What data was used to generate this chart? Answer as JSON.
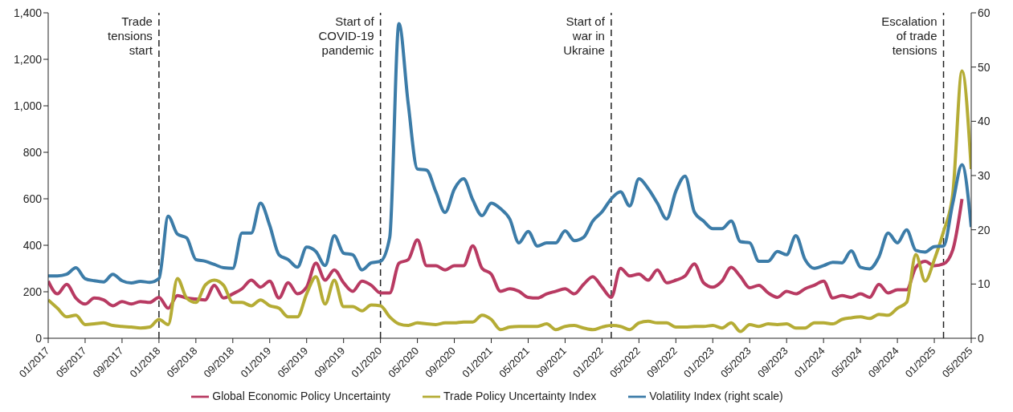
{
  "chart_data": {
    "type": "line",
    "x": [
      "2017-01",
      "2017-02",
      "2017-03",
      "2017-04",
      "2017-05",
      "2017-06",
      "2017-07",
      "2017-08",
      "2017-09",
      "2017-10",
      "2017-11",
      "2017-12",
      "2018-01",
      "2018-02",
      "2018-03",
      "2018-04",
      "2018-05",
      "2018-06",
      "2018-07",
      "2018-08",
      "2018-09",
      "2018-10",
      "2018-11",
      "2018-12",
      "2019-01",
      "2019-02",
      "2019-03",
      "2019-04",
      "2019-05",
      "2019-06",
      "2019-07",
      "2019-08",
      "2019-09",
      "2019-10",
      "2019-11",
      "2019-12",
      "2020-01",
      "2020-02",
      "2020-03",
      "2020-04",
      "2020-05",
      "2020-06",
      "2020-07",
      "2020-08",
      "2020-09",
      "2020-10",
      "2020-11",
      "2020-12",
      "2021-01",
      "2021-02",
      "2021-03",
      "2021-04",
      "2021-05",
      "2021-06",
      "2021-07",
      "2021-08",
      "2021-09",
      "2021-10",
      "2021-11",
      "2021-12",
      "2022-01",
      "2022-02",
      "2022-03",
      "2022-04",
      "2022-05",
      "2022-06",
      "2022-07",
      "2022-08",
      "2022-09",
      "2022-10",
      "2022-11",
      "2022-12",
      "2023-01",
      "2023-02",
      "2023-03",
      "2023-04",
      "2023-05",
      "2023-06",
      "2023-07",
      "2023-08",
      "2023-09",
      "2023-10",
      "2023-11",
      "2023-12",
      "2024-01",
      "2024-02",
      "2024-03",
      "2024-04",
      "2024-05",
      "2024-06",
      "2024-07",
      "2024-08",
      "2024-09",
      "2024-10",
      "2024-11",
      "2024-12",
      "2025-01",
      "2025-02",
      "2025-03",
      "2025-04",
      "2025-05"
    ],
    "series": [
      {
        "name": "Global Economic Policy Uncertainty",
        "color": "#b83a62",
        "values": [
          246,
          191,
          232,
          173,
          147,
          173,
          165,
          140,
          158,
          147,
          158,
          154,
          176,
          129,
          184,
          173,
          169,
          165,
          228,
          173,
          191,
          213,
          250,
          220,
          246,
          173,
          239,
          191,
          220,
          323,
          250,
          294,
          239,
          202,
          246,
          228,
          195,
          195,
          323,
          338,
          423,
          312,
          312,
          294,
          312,
          312,
          397,
          301,
          276,
          202,
          213,
          202,
          176,
          173,
          191,
          202,
          213,
          191,
          232,
          265,
          220,
          176,
          301,
          268,
          276,
          250,
          294,
          239,
          250,
          268,
          320,
          239,
          220,
          246,
          305,
          265,
          217,
          228,
          195,
          176,
          202,
          191,
          213,
          228,
          246,
          173,
          184,
          176,
          191,
          176,
          232,
          195,
          209,
          209,
          305,
          331,
          312,
          320,
          380,
          599,
          null
        ]
      },
      {
        "name": "Trade Policy Uncertainty Index",
        "color": "#b5ac35",
        "values": [
          165,
          129,
          92,
          99,
          59,
          62,
          66,
          55,
          51,
          48,
          44,
          48,
          81,
          59,
          257,
          173,
          154,
          228,
          250,
          228,
          154,
          154,
          140,
          165,
          140,
          129,
          92,
          92,
          191,
          265,
          147,
          250,
          136,
          136,
          118,
          143,
          140,
          92,
          62,
          55,
          66,
          62,
          59,
          66,
          66,
          70,
          70,
          99,
          81,
          37,
          48,
          51,
          51,
          51,
          62,
          37,
          51,
          55,
          44,
          37,
          48,
          55,
          51,
          37,
          66,
          73,
          66,
          66,
          48,
          48,
          51,
          51,
          55,
          44,
          66,
          29,
          59,
          51,
          62,
          59,
          62,
          44,
          44,
          66,
          66,
          62,
          81,
          88,
          92,
          85,
          103,
          99,
          129,
          154,
          360,
          246,
          338,
          459,
          620,
          1150,
          728
        ]
      },
      {
        "name": "Volatility Index (right scale)",
        "color": "#3c7ca8",
        "axis": "y2",
        "values": [
          11.5,
          11.5,
          11.8,
          13,
          11,
          10.6,
          10.4,
          11.8,
          10.6,
          10.2,
          10.5,
          10.3,
          11,
          22.5,
          19.2,
          18.5,
          14.5,
          14.2,
          13.6,
          13,
          12.9,
          19.4,
          19.4,
          24.9,
          20.8,
          15.4,
          14.5,
          13.1,
          16.8,
          16,
          13.4,
          18.9,
          15.7,
          15.4,
          12.6,
          13.9,
          14.2,
          18.6,
          58,
          43.3,
          31.2,
          31,
          27,
          23.2,
          27.5,
          29.4,
          25.5,
          22.6,
          24.9,
          23.9,
          22,
          17.6,
          19.7,
          17,
          17.6,
          17.6,
          19.8,
          18,
          18.6,
          21.6,
          23.3,
          25.7,
          27,
          24.4,
          29.4,
          27.6,
          24.9,
          22,
          27.1,
          29.9,
          23.3,
          21.6,
          20.2,
          20.2,
          21.6,
          17.8,
          17.6,
          14.2,
          14.2,
          16,
          15.4,
          18.9,
          14.5,
          12.9,
          13.4,
          14,
          13.9,
          16.1,
          13.1,
          12.8,
          15,
          19.4,
          17.6,
          20,
          16.2,
          15.9,
          16.9,
          17,
          24.9,
          32,
          20.5
        ]
      }
    ],
    "xlim": [
      "2017-01",
      "2025-05"
    ],
    "xticks": [
      {
        "value": "2017-01",
        "label": "01/2017"
      },
      {
        "value": "2017-05",
        "label": "05/2017"
      },
      {
        "value": "2017-09",
        "label": "09/2017"
      },
      {
        "value": "2018-01",
        "label": "01/2018"
      },
      {
        "value": "2018-05",
        "label": "05/2018"
      },
      {
        "value": "2018-09",
        "label": "09/2018"
      },
      {
        "value": "2019-01",
        "label": "01/2019"
      },
      {
        "value": "2019-05",
        "label": "05/2019"
      },
      {
        "value": "2019-09",
        "label": "09/2019"
      },
      {
        "value": "2020-01",
        "label": "01/2020"
      },
      {
        "value": "2020-05",
        "label": "05/2020"
      },
      {
        "value": "2020-09",
        "label": "09/2020"
      },
      {
        "value": "2021-01",
        "label": "01/2021"
      },
      {
        "value": "2021-05",
        "label": "05/2021"
      },
      {
        "value": "2021-09",
        "label": "09/2021"
      },
      {
        "value": "2022-01",
        "label": "01/2022"
      },
      {
        "value": "2022-05",
        "label": "05/2022"
      },
      {
        "value": "2022-09",
        "label": "09/2022"
      },
      {
        "value": "2023-01",
        "label": "01/2023"
      },
      {
        "value": "2023-05",
        "label": "05/2023"
      },
      {
        "value": "2023-09",
        "label": "09/2023"
      },
      {
        "value": "2024-01",
        "label": "01/2024"
      },
      {
        "value": "2024-05",
        "label": "05/2024"
      },
      {
        "value": "2024-09",
        "label": "09/2024"
      },
      {
        "value": "2025-01",
        "label": "01/2025"
      },
      {
        "value": "2025-05",
        "label": "05/2025"
      }
    ],
    "ylim": [
      0,
      1400
    ],
    "yticks": [
      0,
      200,
      400,
      600,
      800,
      {
        "value": 1000,
        "label": "1,000"
      },
      {
        "value": 1200,
        "label": "1,200"
      },
      {
        "value": 1400,
        "label": "1,400"
      }
    ],
    "y2lim": [
      0,
      60
    ],
    "y2ticks": [
      0,
      10,
      20,
      30,
      40,
      50,
      60
    ],
    "ref_lines": [
      {
        "axis": "x",
        "value": "2018-01",
        "label": "Trade tensions start",
        "line_style": "dashed",
        "color": "#222222"
      },
      {
        "axis": "x",
        "value": "2020-01",
        "label": "Start of COVID-19 pandemic",
        "line_style": "dashed",
        "color": "#222222"
      },
      {
        "axis": "x",
        "value": "2022-02",
        "label": "Start of war in Ukraine",
        "line_style": "dashed",
        "color": "#222222"
      },
      {
        "axis": "x",
        "value": "2025-02",
        "label": "Escalation of trade tensions",
        "line_style": "dashed",
        "color": "#222222"
      }
    ],
    "legend": "bottom",
    "grid": false,
    "marker": "none",
    "line_style": "solid"
  }
}
